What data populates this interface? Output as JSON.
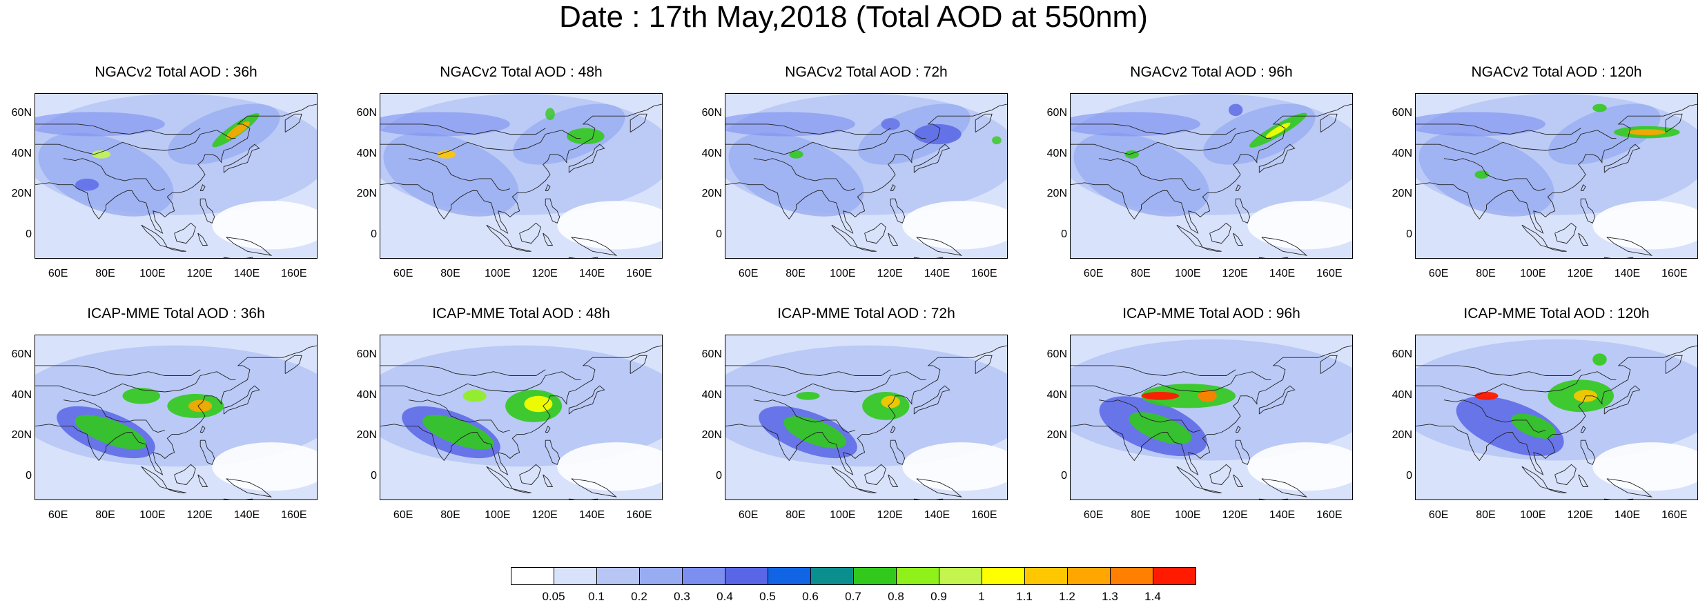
{
  "title": "Date : 17th May,2018 (Total AOD at 550nm)",
  "panels": [
    {
      "title": "NGACv2 Total AOD : 36h",
      "model": "NGACv2",
      "lead": "36h"
    },
    {
      "title": "NGACv2 Total AOD : 48h",
      "model": "NGACv2",
      "lead": "48h"
    },
    {
      "title": "NGACv2 Total AOD : 72h",
      "model": "NGACv2",
      "lead": "72h"
    },
    {
      "title": "NGACv2 Total AOD : 96h",
      "model": "NGACv2",
      "lead": "96h"
    },
    {
      "title": "NGACv2 Total AOD : 120h",
      "model": "NGACv2",
      "lead": "120h"
    },
    {
      "title": "ICAP-MME Total AOD : 36h",
      "model": "ICAP-MME",
      "lead": "36h"
    },
    {
      "title": "ICAP-MME Total AOD : 48h",
      "model": "ICAP-MME",
      "lead": "48h"
    },
    {
      "title": "ICAP-MME Total AOD : 72h",
      "model": "ICAP-MME",
      "lead": "72h"
    },
    {
      "title": "ICAP-MME Total AOD : 96h",
      "model": "ICAP-MME",
      "lead": "96h"
    },
    {
      "title": "ICAP-MME Total AOD : 120h",
      "model": "ICAP-MME",
      "lead": "120h"
    }
  ],
  "axes": {
    "lon_ticks": [
      "60E",
      "80E",
      "100E",
      "120E",
      "140E",
      "160E"
    ],
    "lat_ticks": [
      "60N",
      "40N",
      "20N",
      "0"
    ],
    "lon_range": [
      50,
      170
    ],
    "lat_range": [
      -12,
      70
    ]
  },
  "colorbar": {
    "labels": [
      "0.05",
      "0.1",
      "0.2",
      "0.3",
      "0.4",
      "0.5",
      "0.6",
      "0.7",
      "0.8",
      "0.9",
      "1",
      "1.1",
      "1.2",
      "1.3",
      "1.4"
    ],
    "colors": [
      "#ffffff",
      "#d8e2fb",
      "#b7c6f5",
      "#98acf1",
      "#7c8ff0",
      "#5966e6",
      "#1165e4",
      "#0b8f8e",
      "#32c91c",
      "#8ff01a",
      "#c4f54f",
      "#ffff00",
      "#ffc700",
      "#ffa600",
      "#ff7f00",
      "#ff1a00"
    ]
  }
}
